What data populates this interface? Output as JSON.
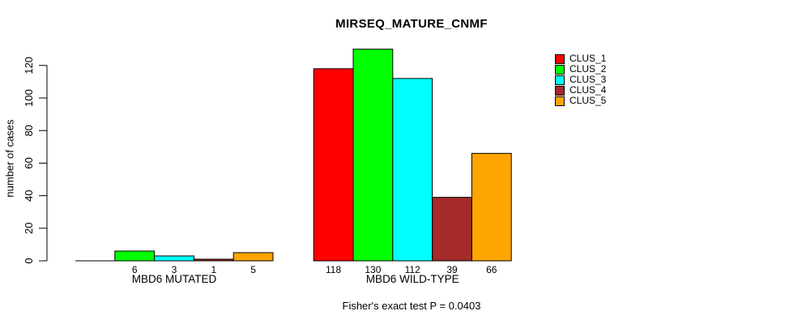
{
  "chart_data": {
    "type": "bar",
    "title": "MIRSEQ_MATURE_CNMF",
    "ylabel": "number of cases",
    "xlabel": "",
    "annotation": "Fisher's exact test P = 0.0403",
    "categories": [
      "MBD6 MUTATED",
      "MBD6 WILD-TYPE"
    ],
    "series": [
      {
        "name": "CLUS_1",
        "color": "#FF0000",
        "values": [
          0,
          118
        ]
      },
      {
        "name": "CLUS_2",
        "color": "#00FF00",
        "values": [
          6,
          130
        ]
      },
      {
        "name": "CLUS_3",
        "color": "#00FFFF",
        "values": [
          3,
          112
        ]
      },
      {
        "name": "CLUS_4",
        "color": "#A52A2A",
        "values": [
          1,
          39
        ]
      },
      {
        "name": "CLUS_5",
        "color": "#FFA500",
        "values": [
          5,
          66
        ]
      }
    ],
    "bar_value_labels": [
      [
        null,
        6,
        3,
        1,
        5
      ],
      [
        118,
        130,
        112,
        39,
        66
      ]
    ],
    "yticks": [
      0,
      20,
      40,
      60,
      80,
      100,
      120
    ],
    "ylim": [
      0,
      130
    ],
    "grid": false,
    "legend_position": "top-right",
    "bar_border_color": "#000000",
    "axis_color": "#000000",
    "background_color": "#FFFFFF"
  }
}
